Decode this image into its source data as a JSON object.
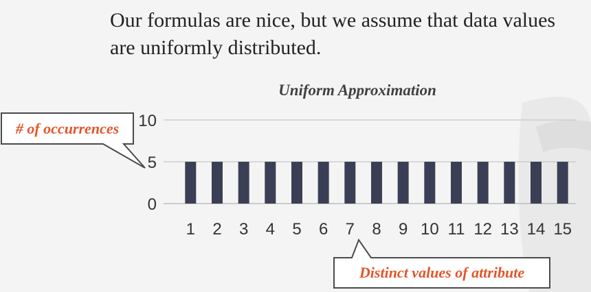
{
  "slide": {
    "body_text": "Our formulas are nice, but we assume that data values are uniformly distributed."
  },
  "callouts": {
    "y_axis": "# of occurrences",
    "x_axis": "Distinct values of attribute"
  },
  "colors": {
    "bar": "#3b3f56",
    "callout_text": "#e2562a",
    "grid": "#bdbdbd"
  },
  "chart_data": {
    "type": "bar",
    "title": "Uniform Approximation",
    "categories": [
      "1",
      "2",
      "3",
      "4",
      "5",
      "6",
      "7",
      "8",
      "9",
      "10",
      "11",
      "12",
      "13",
      "14",
      "15"
    ],
    "values": [
      5,
      5,
      5,
      5,
      5,
      5,
      5,
      5,
      5,
      5,
      5,
      5,
      5,
      5,
      5
    ],
    "xlabel": "",
    "ylabel": "",
    "ylim": [
      0,
      10
    ],
    "yticks": [
      0,
      5,
      10
    ],
    "grid": true,
    "legend": "none"
  }
}
